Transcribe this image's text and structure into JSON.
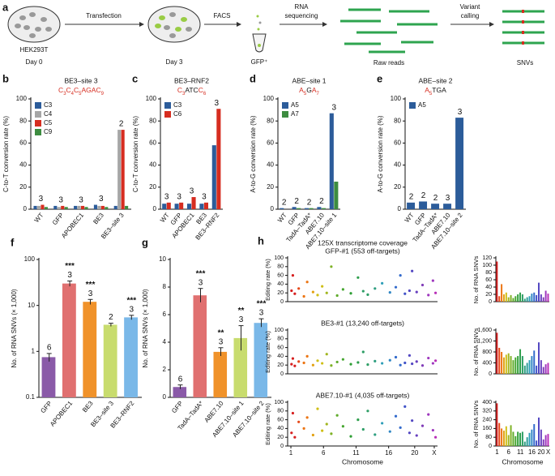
{
  "workflow": {
    "panel": "a",
    "cells": "HEK293T",
    "day0": "Day 0",
    "step1": "Transfection",
    "day3": "Day 3",
    "step2": "FACS",
    "sorted": "GFP⁺",
    "step3_line1": "RNA",
    "step3_line2": "sequencing",
    "reads": "Raw reads",
    "step4_line1": "Variant",
    "step4_line2": "calling",
    "snvs": "SNVs"
  },
  "chromosome_colors": [
    "hsl(0,75%,48%)",
    "hsl(14,80%,50%)",
    "hsl(27,85%,50%)",
    "hsl(41,85%,48%)",
    "hsl(55,80%,45%)",
    "hsl(68,70%,42%)",
    "hsl(82,65%,42%)",
    "hsl(95,60%,42%)",
    "hsl(109,55%,42%)",
    "hsl(123,55%,40%)",
    "hsl(136,55%,40%)",
    "hsl(150,55%,40%)",
    "hsl(164,55%,40%)",
    "hsl(177,55%,40%)",
    "hsl(191,60%,45%)",
    "hsl(205,60%,48%)",
    "hsl(218,60%,50%)",
    "hsl(232,55%,52%)",
    "hsl(245,50%,52%)",
    "hsl(259,50%,50%)",
    "hsl(273,50%,48%)",
    "hsl(286,55%,48%)",
    "hsl(300,60%,45%)"
  ],
  "chart_data": [
    {
      "type": "bar",
      "panel": "b",
      "title": "BE3–site 3",
      "subtitle": [
        {
          "text": "C",
          "sub": "3",
          "color": "#d62d20"
        },
        {
          "text": "C",
          "sub": "4",
          "color": "#d62d20"
        },
        {
          "text": "C",
          "sub": "5",
          "color": "#d62d20"
        },
        {
          "text": "AGA",
          "color": "#d62d20"
        },
        {
          "text": "C",
          "sub": "9",
          "color": "#d62d20"
        }
      ],
      "ylabel": "C-to-T conversion rate (%)",
      "categories": [
        "WT",
        "GFP",
        "APOBEC1",
        "BE3",
        "BE3–site 3"
      ],
      "series": [
        {
          "name": "C3",
          "color": "#2c5c9a",
          "values": [
            3,
            3,
            3,
            4,
            3
          ]
        },
        {
          "name": "C4",
          "color": "#a6a6a6",
          "values": [
            3,
            2,
            3,
            3,
            72
          ]
        },
        {
          "name": "C5",
          "color": "#d62d20",
          "values": [
            4,
            3,
            3,
            3,
            72
          ]
        },
        {
          "name": "C9",
          "color": "#3d8c40",
          "values": [
            2,
            2,
            2,
            2,
            3
          ]
        }
      ],
      "n_labels": [
        3,
        3,
        3,
        3,
        2
      ],
      "ylim": [
        0,
        100
      ],
      "yticks": [
        0,
        20,
        40,
        60,
        80,
        100
      ],
      "legend": "upper-left"
    },
    {
      "type": "bar",
      "panel": "c",
      "title": "BE3–RNF2",
      "subtitle": [
        {
          "text": "C",
          "sub": "3",
          "color": "#d62d20"
        },
        {
          "text": "ATC",
          "color": "#111"
        },
        {
          "text": "C",
          "sub": "6",
          "color": "#d62d20"
        }
      ],
      "ylabel": "C-to-T conversion rate (%)",
      "categories": [
        "WT",
        "GFP",
        "APOBEC1",
        "BE3",
        "BE3–RNF2"
      ],
      "series": [
        {
          "name": "C3",
          "color": "#2c5c9a",
          "values": [
            5,
            5,
            5,
            5,
            58
          ]
        },
        {
          "name": "C6",
          "color": "#d62d20",
          "values": [
            6,
            6,
            11,
            6,
            91
          ]
        }
      ],
      "n_labels": [
        3,
        3,
        3,
        3,
        3
      ],
      "ylim": [
        0,
        100
      ],
      "yticks": [
        0,
        20,
        40,
        60,
        80,
        100
      ],
      "legend": "upper-left"
    },
    {
      "type": "bar",
      "panel": "d",
      "title": "ABE–site 1",
      "subtitle": [
        {
          "text": "A",
          "sub": "5",
          "color": "#d62d20"
        },
        {
          "text": "G",
          "color": "#111"
        },
        {
          "text": "A",
          "sub": "7",
          "color": "#d62d20"
        }
      ],
      "ylabel": "A-to-G conversion rate (%)",
      "categories": [
        "WT",
        "GFP",
        "TadA–TadA*",
        "ABE7.10",
        "ABE7.10–site 1"
      ],
      "series": [
        {
          "name": "A5",
          "color": "#2c5c9a",
          "values": [
            1,
            2,
            1,
            2,
            87
          ]
        },
        {
          "name": "A7",
          "color": "#3d8c40",
          "values": [
            0,
            1,
            1,
            1,
            25
          ]
        }
      ],
      "n_labels": [
        2,
        2,
        2,
        2,
        3
      ],
      "ylim": [
        0,
        100
      ],
      "yticks": [
        0,
        20,
        40,
        60,
        80,
        100
      ],
      "legend": "upper-left"
    },
    {
      "type": "bar",
      "panel": "e",
      "title": "ABE–site 2",
      "subtitle": [
        {
          "text": "A",
          "sub": "5",
          "color": "#d62d20"
        },
        {
          "text": "TGA",
          "color": "#111"
        }
      ],
      "ylabel": "A-to-G conversion rate (%)",
      "categories": [
        "WT",
        "GFP",
        "TadA–TadA*",
        "ABE7.10",
        "ABE7.10–site 2"
      ],
      "series": [
        {
          "name": "A5",
          "color": "#2c5c9a",
          "values": [
            6,
            7,
            5,
            5,
            83
          ]
        }
      ],
      "n_labels": [
        2,
        2,
        2,
        3,
        3
      ],
      "ylim": [
        0,
        100
      ],
      "yticks": [
        0,
        20,
        40,
        60,
        80,
        100
      ],
      "legend": "upper-left"
    },
    {
      "type": "bar",
      "panel": "f",
      "ylabel": "No. of RNA SNVs (× 1,000)",
      "log_scale": true,
      "categories": [
        "GFP",
        "APOBEC1",
        "BE3",
        "BE3–site 3",
        "BE3–RNF2"
      ],
      "values": [
        0.75,
        30,
        12,
        3.8,
        5.5
      ],
      "errors": [
        0.15,
        4,
        1.5,
        0.3,
        0.6
      ],
      "colors": [
        "#8a5aa8",
        "#e07070",
        "#f0922a",
        "#c8dc6e",
        "#7ab8e8"
      ],
      "n_labels": [
        6,
        3,
        3,
        2,
        3
      ],
      "significance": [
        null,
        "***",
        "***",
        null,
        "***"
      ],
      "ylim": [
        0.1,
        100
      ],
      "yticks": [
        0.1,
        1,
        10,
        100
      ]
    },
    {
      "type": "bar",
      "panel": "g",
      "ylabel": "No. of RNA SNVs (× 1,000)",
      "categories": [
        "GFP",
        "TadA–TadA*",
        "ABE7.10",
        "ABE7.10–site 1",
        "ABE7.10–site 2"
      ],
      "values": [
        0.75,
        7.4,
        3.3,
        4.3,
        5.4
      ],
      "errors": [
        0.15,
        0.5,
        0.3,
        0.9,
        0.3
      ],
      "colors": [
        "#8a5aa8",
        "#e07070",
        "#f0922a",
        "#c8dc6e",
        "#7ab8e8"
      ],
      "n_labels": [
        6,
        3,
        3,
        3,
        3
      ],
      "significance": [
        null,
        "***",
        "**",
        "**",
        "***"
      ],
      "ylim": [
        0,
        10
      ],
      "yticks": [
        0,
        2,
        4,
        6,
        8,
        10
      ]
    },
    {
      "type": "scatter",
      "panel": "h",
      "header": "125X transcriptome coverage",
      "title": "GFP-#1 (553 off-targets)",
      "ylabel": "Editing rate (%)",
      "x": [
        1.1,
        1.3,
        1.6,
        2.2,
        3.0,
        3.5,
        4.4,
        5.1,
        5.8,
        6.5,
        7.2,
        8.1,
        9.0,
        10.2,
        11.3,
        12.1,
        12.8,
        13.9,
        15.0,
        16.2,
        17.1,
        17.8,
        18.5,
        19.2,
        19.6,
        20.3,
        21.2,
        22.1,
        22.8,
        23.2
      ],
      "values": [
        25,
        60,
        18,
        30,
        12,
        45,
        22,
        15,
        35,
        20,
        80,
        14,
        28,
        19,
        55,
        24,
        16,
        30,
        42,
        21,
        33,
        60,
        18,
        25,
        70,
        22,
        38,
        15,
        48,
        20
      ],
      "xlim": [
        0.5,
        23.5
      ],
      "ylim": [
        0,
        100
      ],
      "yticks": [
        0,
        20,
        40,
        60,
        80,
        100
      ]
    },
    {
      "type": "scatter",
      "title": "BE3-#1 (13,240 off-targets)",
      "ylabel": "Editing rate (%)",
      "x": [
        1.1,
        1.3,
        1.6,
        2.2,
        3.0,
        3.5,
        4.4,
        5.1,
        5.8,
        6.5,
        7.2,
        8.1,
        9.0,
        10.2,
        11.3,
        12.1,
        12.8,
        13.9,
        15.0,
        16.2,
        17.1,
        17.8,
        18.5,
        19.2,
        19.6,
        20.3,
        21.2,
        22.1,
        22.8,
        23.2
      ],
      "values": [
        22,
        35,
        18,
        28,
        25,
        40,
        20,
        30,
        24,
        45,
        19,
        27,
        33,
        22,
        26,
        50,
        21,
        29,
        24,
        31,
        38,
        20,
        25,
        42,
        23,
        28,
        19,
        36,
        24,
        30
      ],
      "xlim": [
        0.5,
        23.5
      ],
      "ylim": [
        0,
        100
      ],
      "yticks": [
        0,
        20,
        40,
        60,
        80,
        100
      ]
    },
    {
      "type": "scatter",
      "title": "ABE7.10-#1 (4,035 off-targets)",
      "ylabel": "Editing rate (%)",
      "xlabel": "Chromosome",
      "x": [
        1.1,
        1.3,
        1.6,
        2.2,
        3.0,
        3.5,
        4.4,
        5.1,
        5.8,
        6.5,
        7.2,
        8.1,
        9.0,
        10.2,
        11.3,
        12.1,
        12.8,
        13.9,
        15.0,
        16.2,
        17.1,
        17.8,
        18.5,
        19.2,
        19.6,
        20.3,
        21.2,
        22.1,
        22.8,
        23.2
      ],
      "values": [
        30,
        75,
        20,
        55,
        40,
        65,
        25,
        85,
        35,
        50,
        28,
        70,
        45,
        22,
        60,
        38,
        80,
        26,
        52,
        33,
        68,
        42,
        90,
        30,
        58,
        24,
        46,
        72,
        36,
        20
      ],
      "xlim": [
        0.5,
        23.5
      ],
      "ylim": [
        0,
        100
      ],
      "yticks": [
        0,
        20,
        40,
        60,
        80,
        100
      ],
      "xticks": [
        1,
        6,
        11,
        16,
        20,
        {
          "value": 23,
          "label": "X"
        }
      ]
    },
    {
      "type": "bar",
      "ylabel": "No. of RNA SNVs",
      "values": [
        110,
        15,
        48,
        20,
        25,
        12,
        18,
        10,
        15,
        20,
        25,
        20,
        8,
        12,
        15,
        22,
        25,
        18,
        52,
        20,
        12,
        30,
        22
      ],
      "ylim": [
        0,
        120
      ],
      "yticks": [
        0,
        20,
        40,
        60,
        80,
        100,
        120
      ]
    },
    {
      "type": "bar",
      "ylabel": "No. of RNA SNVs",
      "values": [
        1500,
        950,
        800,
        600,
        700,
        750,
        650,
        500,
        600,
        650,
        900,
        650,
        300,
        400,
        500,
        650,
        850,
        300,
        1150,
        500,
        250,
        350,
        400
      ],
      "ylim": [
        0,
        1600
      ],
      "yticks": [
        0,
        400,
        800,
        {
          "value": 1200,
          "label": "1,200"
        },
        {
          "value": 1600,
          "label": "1,600"
        }
      ]
    },
    {
      "type": "bar",
      "ylabel": "No. of RNA SNVs",
      "xlabel": "Chromosome",
      "values": [
        390,
        210,
        160,
        140,
        180,
        100,
        190,
        130,
        90,
        130,
        120,
        130,
        40,
        80,
        120,
        150,
        200,
        50,
        260,
        150,
        60,
        100,
        110
      ],
      "categories": [
        "1",
        null,
        null,
        null,
        null,
        "6",
        null,
        null,
        null,
        null,
        "11",
        null,
        null,
        null,
        null,
        "16",
        null,
        null,
        null,
        "20",
        null,
        null,
        "X"
      ],
      "ylim": [
        0,
        400
      ],
      "yticks": [
        0,
        80,
        160,
        240,
        320,
        400
      ]
    }
  ]
}
